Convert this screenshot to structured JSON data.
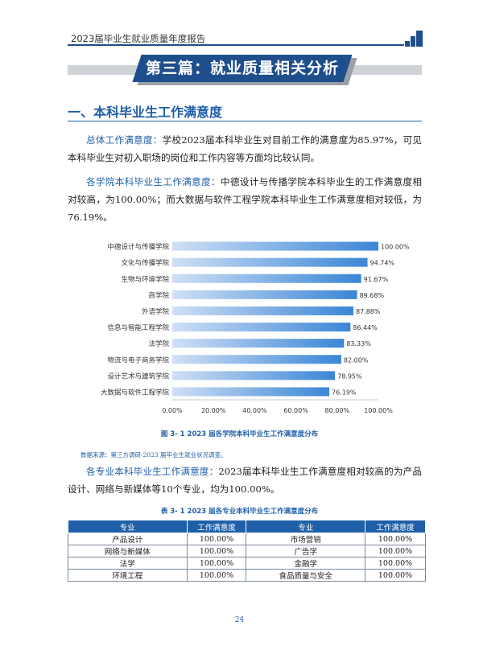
{
  "header": {
    "title": "2023届毕业生就业质量年度报告",
    "accent_color": "#1f4e8c"
  },
  "banner": {
    "text": "第三篇：就业质量相关分析"
  },
  "section": {
    "title": "一、本科毕业生工作满意度"
  },
  "paragraphs": {
    "overall": {
      "lead": "总体工作满意度：",
      "body": "学校2023届本科毕业生对目前工作的满意度为85.97%，可见本科毕业生对初入职场的岗位和工作内容等方面均比较认同。"
    },
    "college": {
      "lead": "各学院本科毕业生工作满意度：",
      "body": "中德设计与传播学院本科毕业生的工作满意度相对较高，为100.00%；而大数据与软件工程学院本科毕业生工作满意度相对较低，为76.19%。"
    },
    "major": {
      "lead": "各专业本科毕业生工作满意度：",
      "body": "2023届本科毕业生工作满意度相对较高的为产品设计、网络与新媒体等10个专业，均为100.00%。"
    }
  },
  "chart_data": {
    "type": "bar",
    "orientation": "horizontal",
    "categories": [
      "中德设计与传播学院",
      "文化与传播学院",
      "生物与环境学院",
      "商学院",
      "外语学院",
      "信息与智能工程学院",
      "法学院",
      "物流与电子商务学院",
      "设计艺术与建筑学院",
      "大数据与软件工程学院"
    ],
    "values": [
      100.0,
      94.74,
      91.67,
      89.68,
      87.88,
      86.44,
      83.33,
      82.0,
      78.95,
      76.19
    ],
    "value_labels": [
      "100.00%",
      "94.74%",
      "91.67%",
      "89.68%",
      "87.88%",
      "86.44%",
      "83.33%",
      "82.00%",
      "78.95%",
      "76.19%"
    ],
    "x_ticks": [
      "0.00%",
      "20.00%",
      "40.00%",
      "60.00%",
      "80.00%",
      "100.00%"
    ],
    "xlim": [
      0,
      100
    ],
    "grid": false,
    "bar_color_start": "#cfe0f5",
    "bar_color_end": "#3b86d6"
  },
  "figure": {
    "caption": "图 3- 1    2023 届各学院本科毕业生工作满意度分布",
    "source": "数据来源：第三方调研-2023 届毕业生就业状况调查。"
  },
  "table": {
    "caption": "表 3- 1    2023 届各专业本科毕业生工作满意度分布",
    "headers": [
      "专业",
      "工作满意度",
      "专业",
      "工作满意度"
    ],
    "rows": [
      [
        "产品设计",
        "100.00%",
        "市场营销",
        "100.00%"
      ],
      [
        "网络与新媒体",
        "100.00%",
        "广告学",
        "100.00%"
      ],
      [
        "法学",
        "100.00%",
        "金融学",
        "100.00%"
      ],
      [
        "环境工程",
        "100.00%",
        "食品质量与安全",
        "100.00%"
      ]
    ]
  },
  "page_number": "24"
}
